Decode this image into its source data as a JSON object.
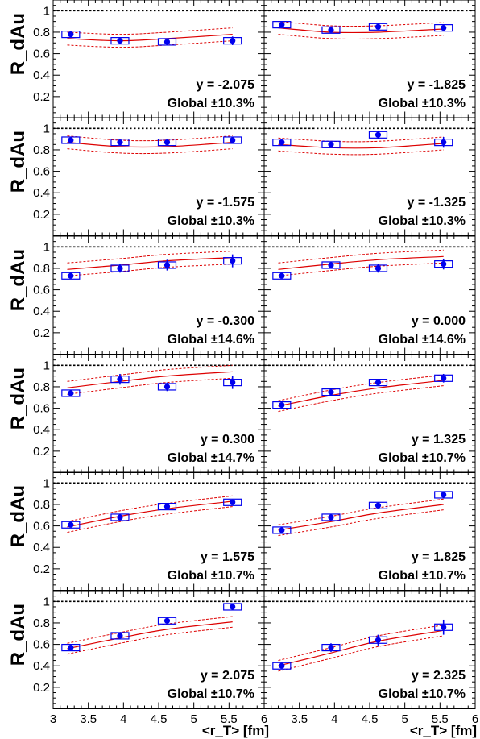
{
  "chart_data": {
    "type": "scatter",
    "layout": "6 rows x 2 columns of panels sharing axes",
    "xlabel": "<r_T> [fm]",
    "ylabel": "R_dAu",
    "xlim": [
      3,
      6
    ],
    "ylim": [
      0,
      1.1
    ],
    "x_ticks": [
      "3",
      "3.5",
      "4",
      "4.5",
      "5",
      "5.5",
      "6"
    ],
    "y_ticks": [
      "0.2",
      "0.4",
      "0.6",
      "0.8",
      "1"
    ],
    "reference_line": {
      "y": 1,
      "style": "dotted black"
    },
    "marker_color": "#0000ee",
    "band_color": "#dd0000",
    "panels": [
      {
        "y_label": "y = -2.075",
        "global": "Global ±10.3%",
        "x": [
          3.25,
          3.95,
          4.62,
          5.55
        ],
        "y": [
          0.78,
          0.72,
          0.71,
          0.72
        ],
        "err": [
          0.02,
          0.02,
          0.03,
          0.04
        ],
        "band": [
          0.74,
          0.72,
          0.74,
          0.78
        ],
        "band_halfwidth": 0.06
      },
      {
        "y_label": "y = -1.825",
        "global": "Global ±10.3%",
        "x": [
          3.25,
          3.95,
          4.62,
          5.55
        ],
        "y": [
          0.87,
          0.82,
          0.85,
          0.84
        ],
        "err": [
          0.02,
          0.02,
          0.02,
          0.02
        ],
        "band": [
          0.84,
          0.8,
          0.8,
          0.83
        ],
        "band_halfwidth": 0.06
      },
      {
        "y_label": "y = -1.575",
        "global": "Global ±10.3%",
        "x": [
          3.25,
          3.95,
          4.62,
          5.55
        ],
        "y": [
          0.89,
          0.87,
          0.87,
          0.89
        ],
        "err": [
          0.02,
          0.02,
          0.02,
          0.02
        ],
        "band": [
          0.87,
          0.83,
          0.83,
          0.87
        ],
        "band_halfwidth": 0.06
      },
      {
        "y_label": "y = -1.325",
        "global": "Global ±10.3%",
        "x": [
          3.25,
          3.95,
          4.62,
          5.55
        ],
        "y": [
          0.87,
          0.85,
          0.94,
          0.87
        ],
        "err": [
          0.02,
          0.02,
          0.04,
          0.05
        ],
        "band": [
          0.85,
          0.82,
          0.82,
          0.86
        ],
        "band_halfwidth": 0.06
      },
      {
        "y_label": "y = -0.300",
        "global": "Global ±14.6%",
        "x": [
          3.25,
          3.95,
          4.62,
          5.55
        ],
        "y": [
          0.73,
          0.8,
          0.83,
          0.87
        ],
        "err": [
          0.02,
          0.04,
          0.05,
          0.06
        ],
        "band": [
          0.79,
          0.83,
          0.87,
          0.9
        ],
        "band_halfwidth": 0.06
      },
      {
        "y_label": "y = 0.000",
        "global": "Global ±14.6%",
        "x": [
          3.25,
          3.95,
          4.62,
          5.55
        ],
        "y": [
          0.73,
          0.83,
          0.8,
          0.84
        ],
        "err": [
          0.02,
          0.03,
          0.04,
          0.05
        ],
        "band": [
          0.79,
          0.84,
          0.88,
          0.91
        ],
        "band_halfwidth": 0.06
      },
      {
        "y_label": "y = 0.300",
        "global": "Global ±14.7%",
        "x": [
          3.25,
          3.95,
          4.62,
          5.55
        ],
        "y": [
          0.74,
          0.87,
          0.8,
          0.84
        ],
        "err": [
          0.02,
          0.05,
          0.04,
          0.06
        ],
        "band": [
          0.79,
          0.85,
          0.9,
          0.94
        ],
        "band_halfwidth": 0.06
      },
      {
        "y_label": "y = 1.325",
        "global": "Global ±10.7%",
        "x": [
          3.25,
          3.95,
          4.62,
          5.55
        ],
        "y": [
          0.63,
          0.75,
          0.84,
          0.88
        ],
        "err": [
          0.02,
          0.02,
          0.02,
          0.04
        ],
        "band": [
          0.62,
          0.72,
          0.79,
          0.86
        ],
        "band_halfwidth": 0.05
      },
      {
        "y_label": "y = 1.575",
        "global": "Global ±10.7%",
        "x": [
          3.25,
          3.95,
          4.62,
          5.55
        ],
        "y": [
          0.61,
          0.68,
          0.78,
          0.82
        ],
        "err": [
          0.02,
          0.02,
          0.02,
          0.02
        ],
        "band": [
          0.59,
          0.69,
          0.76,
          0.83
        ],
        "band_halfwidth": 0.05
      },
      {
        "y_label": "y = 1.825",
        "global": "Global ±10.7%",
        "x": [
          3.25,
          3.95,
          4.62,
          5.55
        ],
        "y": [
          0.56,
          0.68,
          0.79,
          0.89
        ],
        "err": [
          0.02,
          0.02,
          0.02,
          0.02
        ],
        "band": [
          0.56,
          0.64,
          0.72,
          0.8
        ],
        "band_halfwidth": 0.05
      },
      {
        "y_label": "y = 2.075",
        "global": "Global ±10.7%",
        "x": [
          3.25,
          3.95,
          4.62,
          5.55
        ],
        "y": [
          0.57,
          0.68,
          0.82,
          0.95
        ],
        "err": [
          0.02,
          0.02,
          0.02,
          0.03
        ],
        "band": [
          0.56,
          0.66,
          0.74,
          0.81
        ],
        "band_halfwidth": 0.05
      },
      {
        "y_label": "y = 2.325",
        "global": "Global ±10.7%",
        "x": [
          3.25,
          3.95,
          4.62,
          5.55
        ],
        "y": [
          0.4,
          0.57,
          0.64,
          0.76
        ],
        "err": [
          0.02,
          0.04,
          0.05,
          0.07
        ],
        "band": [
          0.4,
          0.52,
          0.63,
          0.73
        ],
        "band_halfwidth": 0.05
      }
    ]
  }
}
